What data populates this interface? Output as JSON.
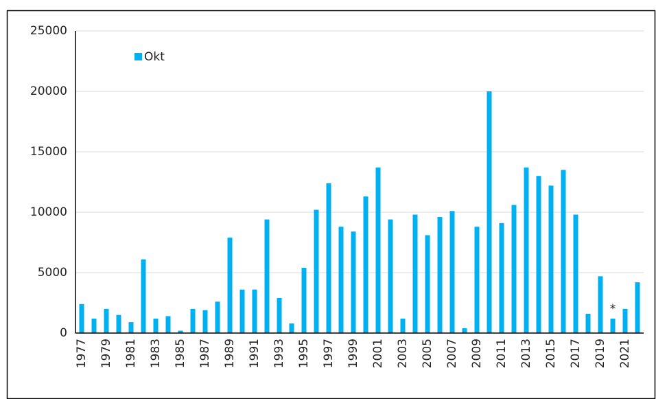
{
  "chart_data": {
    "type": "bar",
    "categories": [
      "1977",
      null,
      "1979",
      null,
      "1981",
      null,
      "1983",
      null,
      "1985",
      null,
      "1987",
      null,
      "1989",
      null,
      "1991",
      null,
      "1993",
      null,
      "1995",
      null,
      "1997",
      null,
      "1999",
      null,
      "2001",
      null,
      "2003",
      null,
      "2005",
      null,
      "2007",
      null,
      "2009",
      null,
      "2011",
      null,
      "2013",
      null,
      "2015",
      null,
      "2017",
      null,
      "2019",
      null,
      "2021",
      null
    ],
    "series": [
      {
        "name": "Okt",
        "color": "#00b0f0",
        "values": [
          2400,
          1200,
          2000,
          1500,
          900,
          6100,
          1200,
          1400,
          200,
          2000,
          1900,
          2600,
          7900,
          3600,
          3600,
          9400,
          2900,
          800,
          5400,
          10200,
          12400,
          8800,
          8400,
          11300,
          13700,
          9400,
          1200,
          9800,
          8100,
          9600,
          10100,
          400,
          8800,
          20000,
          9100,
          10600,
          13700,
          13000,
          12200,
          13500,
          9800,
          1600,
          4700,
          1200,
          2000,
          4200
        ]
      }
    ],
    "annotation": "*",
    "ylim": [
      0,
      25000
    ],
    "yticks": [
      0,
      5000,
      10000,
      15000,
      20000,
      25000
    ],
    "grid": true,
    "legend": "top-left"
  }
}
